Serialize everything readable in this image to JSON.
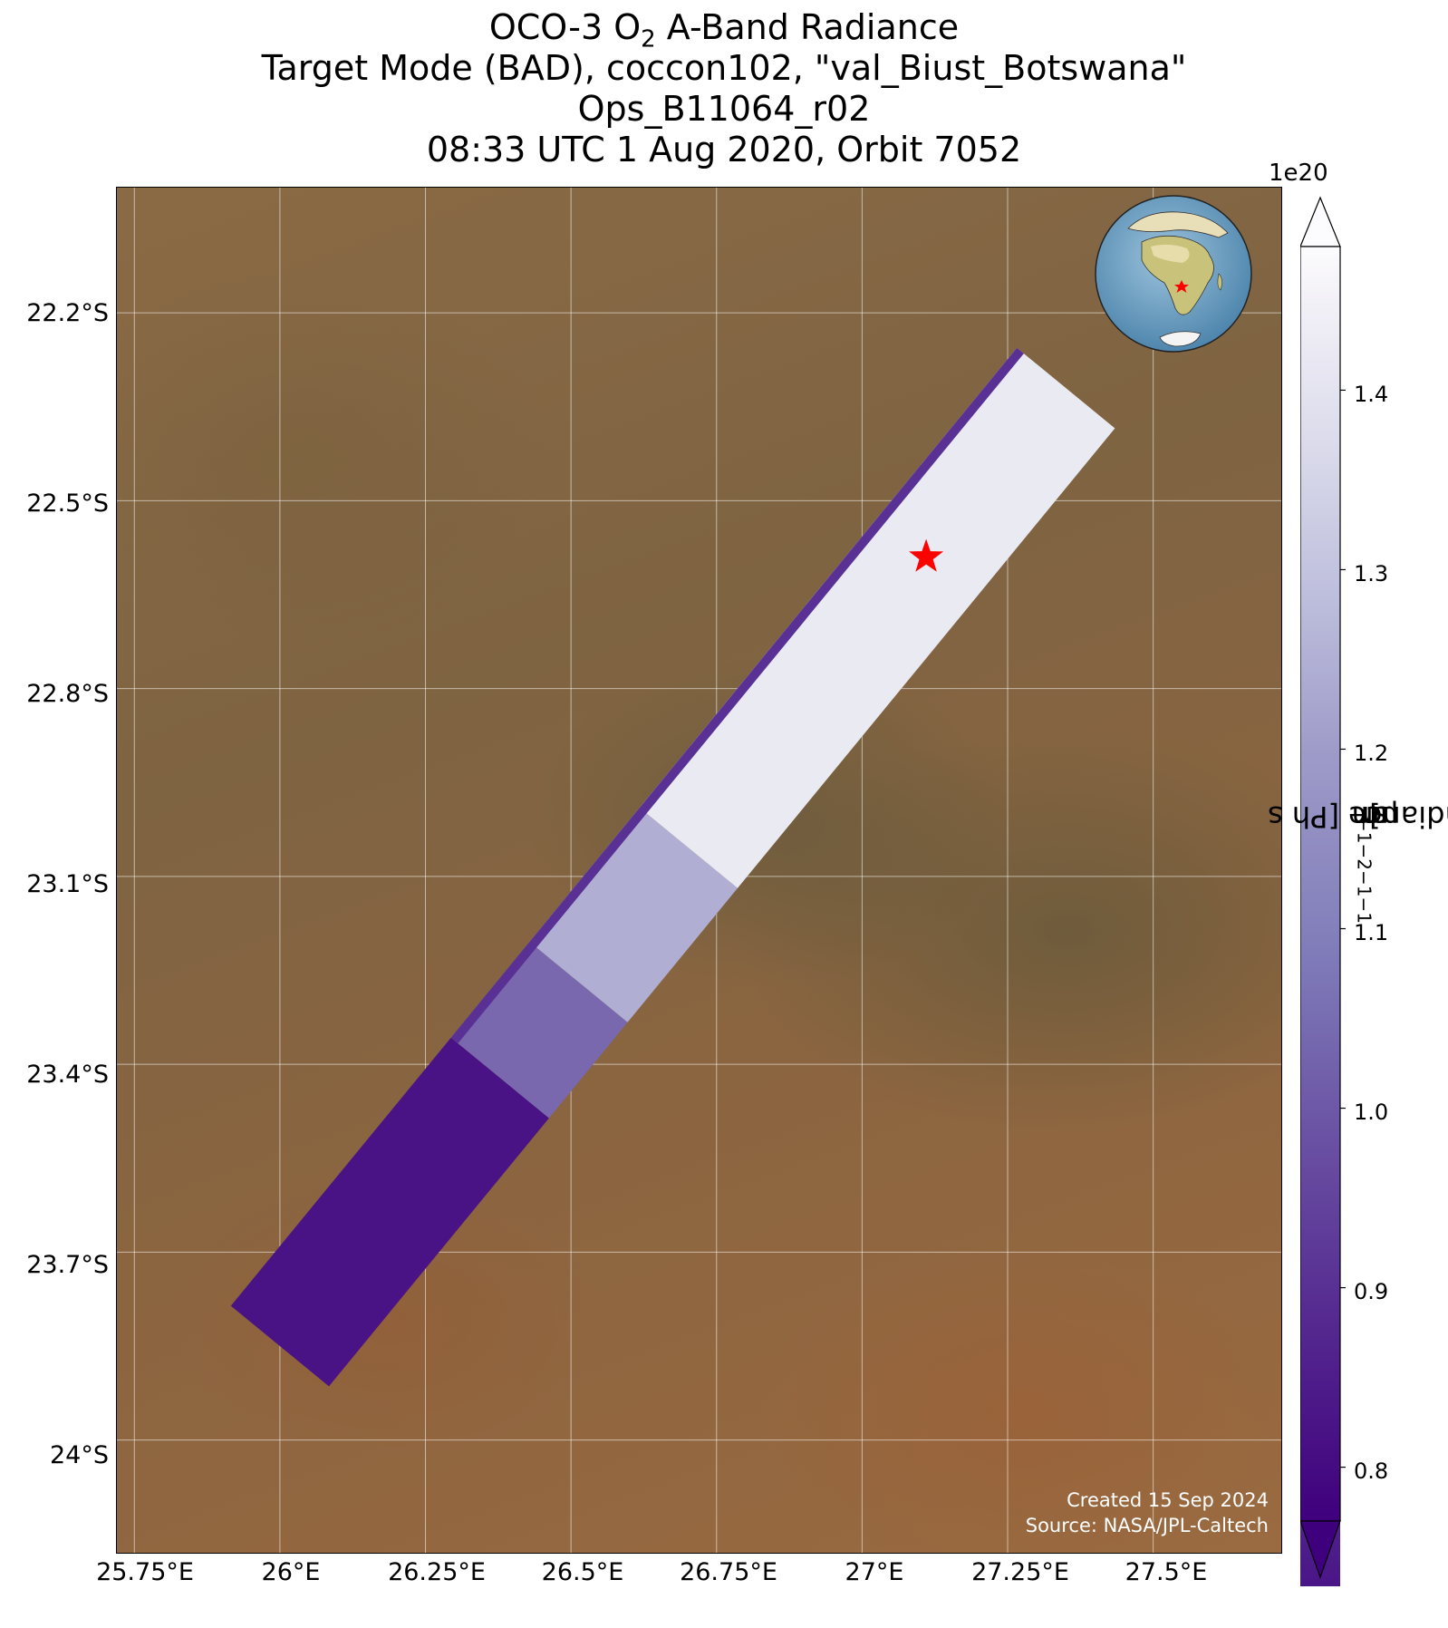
{
  "title": {
    "line1_pre": "OCO-3 O",
    "line1_sub": "2",
    "line1_post": " A-Band Radiance",
    "line2": "Target Mode (BAD), coccon102, \"val_Biust_Botswana\"",
    "line3": "Ops_B11064_r02",
    "line4": "08:33 UTC 1 Aug 2020, Orbit 7052"
  },
  "map": {
    "lat_ticks": [
      "22.2°S",
      "22.5°S",
      "22.8°S",
      "23.1°S",
      "23.4°S",
      "23.7°S",
      "24°S"
    ],
    "lon_ticks": [
      "25.75°E",
      "26°E",
      "26.25°E",
      "26.5°E",
      "26.75°E",
      "27°E",
      "27.25°E",
      "27.5°E"
    ],
    "lat_tick_values": [
      -22.2,
      -22.5,
      -22.8,
      -23.1,
      -23.4,
      -23.7,
      -24.0
    ],
    "lon_tick_values": [
      25.75,
      26.0,
      26.25,
      26.5,
      26.75,
      27.0,
      27.25,
      27.5
    ],
    "extent": {
      "lon_min": 25.72,
      "lon_max": 27.72,
      "lat_min": -24.18,
      "lat_max": -22.0
    },
    "target": {
      "lon": 27.11,
      "lat": -22.59,
      "marker": "red-star"
    },
    "credit_line1": "Created 15 Sep 2024",
    "credit_line2": "Source: NASA/JPL-Caltech",
    "inset": {
      "type": "globe",
      "region": "Africa",
      "marker": "red-star"
    }
  },
  "colorbar": {
    "label_main": "Radiance [Ph s",
    "label_parts": [
      "Radiance [Ph s",
      "−1",
      " m",
      "−2",
      " sr",
      "−1",
      "μm",
      "−1",
      "]"
    ],
    "exponent": "1e20",
    "ticks": [
      "0.8",
      "0.9",
      "1.0",
      "1.1",
      "1.2",
      "1.3",
      "1.4"
    ],
    "tick_values": [
      0.8,
      0.9,
      1.0,
      1.1,
      1.2,
      1.3,
      1.4
    ],
    "vmin": 0.77,
    "vmax": 1.48,
    "colormap": "Purples_r",
    "colors": {
      "low": "#3f007d",
      "mid": "#9e9ac8",
      "high": "#fcfbfd"
    },
    "extend": "both"
  },
  "swath": {
    "start": {
      "lon": 26.0,
      "lat": -23.85
    },
    "end": {
      "lon": 27.35,
      "lat": -22.32
    },
    "segments": [
      {
        "from": 0.0,
        "to": 0.28,
        "radiance": 0.82
      },
      {
        "from": 0.28,
        "to": 0.38,
        "radiance": 1.05
      },
      {
        "from": 0.38,
        "to": 0.52,
        "radiance": 1.25
      },
      {
        "from": 0.52,
        "to": 1.0,
        "radiance": 1.42
      }
    ]
  }
}
